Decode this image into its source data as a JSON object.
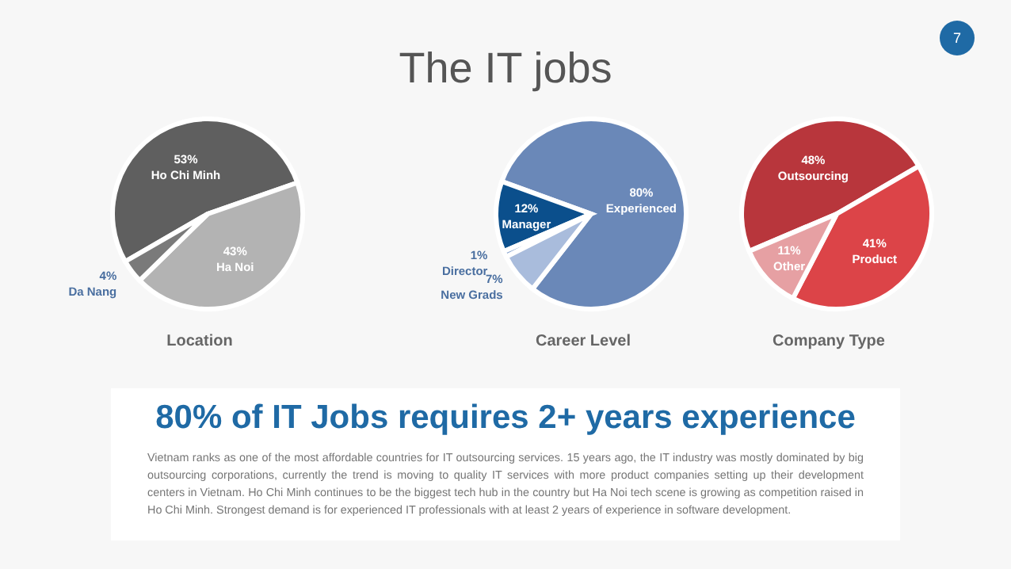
{
  "chart_data": [
    {
      "type": "pie",
      "title": "Location",
      "categories": [
        "Ho Chi Minh",
        "Ha Noi",
        "Da Nang"
      ],
      "values": [
        53,
        43,
        4
      ],
      "value_labels": [
        "53%",
        "43%",
        "4%"
      ],
      "colors": [
        "#5f5f5f",
        "#b3b3b3",
        "#7a7a7a"
      ],
      "legend": false
    },
    {
      "type": "pie",
      "title": "Career Level",
      "categories": [
        "Experienced",
        "Manager",
        "Director",
        "New Grads"
      ],
      "values": [
        80,
        12,
        1,
        7
      ],
      "value_labels": [
        "80%",
        "12%",
        "1%",
        "7%"
      ],
      "colors": [
        "#6a88b8",
        "#0b4f8c",
        "#8ba7d0",
        "#a9bcdc"
      ],
      "legend": false
    },
    {
      "type": "pie",
      "title": "Company Type",
      "categories": [
        "Outsourcing",
        "Product",
        "Other"
      ],
      "values": [
        48,
        41,
        11
      ],
      "value_labels": [
        "48%",
        "41%",
        "11%"
      ],
      "colors": [
        "#b8363c",
        "#dc4448",
        "#e6a0a3"
      ],
      "legend": false
    },
    {
      "type": "other",
      "title": "The IT jobs",
      "subtitle": "80% of IT Jobs requires 2+ years experience",
      "annotations": [
        "Vietnam ranks as one of the most affordable countries for IT outsourcing services. 15 years ago, the IT industry was mostly dominated by big outsourcing corporations, currently the trend is moving to quality IT services with more product companies setting up their development centers in Vietnam. Ho Chi Minh continues to be the biggest tech hub in the country but Ha Noi tech scene is growing as competition raised in Ho Chi Minh. Strongest demand is for experienced IT professionals with at least 2 years of experience in software development.",
        "7"
      ]
    }
  ]
}
